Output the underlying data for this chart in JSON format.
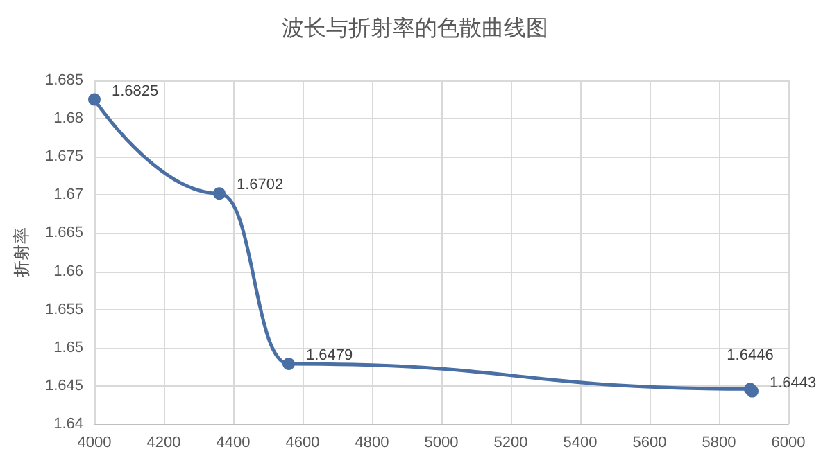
{
  "chart_data": {
    "type": "line",
    "title": "波长与折射率的色散曲线图",
    "ylabel": "折射率",
    "x": [
      4000,
      4360,
      4560,
      5890,
      5896
    ],
    "series": [
      {
        "color": "#4a6fa5",
        "values": [
          1.6825,
          1.6702,
          1.6479,
          1.6446,
          1.6443
        ]
      }
    ],
    "xlim": [
      4000,
      6000
    ],
    "xticks": [
      4000,
      4200,
      4400,
      4600,
      4800,
      5000,
      5200,
      5400,
      5600,
      5800,
      6000
    ],
    "ylim": [
      1.64,
      1.685
    ],
    "yticks": [
      1.64,
      1.645,
      1.65,
      1.655,
      1.66,
      1.665,
      1.67,
      1.675,
      1.68,
      1.685
    ],
    "grid": true,
    "marker": "circle",
    "data_labels": true
  }
}
